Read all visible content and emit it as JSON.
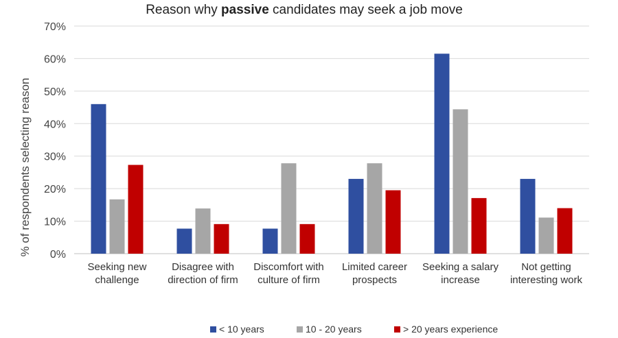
{
  "chart_data": {
    "type": "bar",
    "title": {
      "prefix": "Reason why ",
      "emphasis": "passive",
      "suffix": " candidates may seek a job move"
    },
    "ylabel": "% of respondents selecting reason",
    "xlabel": "",
    "ylim": [
      0,
      70
    ],
    "y_ticks": [
      "0%",
      "10%",
      "20%",
      "30%",
      "40%",
      "50%",
      "60%",
      "70%"
    ],
    "grid": true,
    "legend_position": "bottom",
    "categories": [
      [
        "Seeking new",
        "challenge"
      ],
      [
        "Disagree with",
        "direction of firm"
      ],
      [
        "Discomfort with",
        "culture of firm"
      ],
      [
        "Limited career",
        "prospects"
      ],
      [
        "Seeking a salary",
        "increase"
      ],
      [
        "Not getting",
        "interesting work"
      ]
    ],
    "series": [
      {
        "name": "< 10 years",
        "color": "#2f4fa0",
        "values": [
          46,
          7.7,
          7.7,
          23,
          61.5,
          23
        ]
      },
      {
        "name": "10 - 20 years",
        "color": "#a6a6a6",
        "values": [
          16.7,
          13.9,
          27.8,
          27.8,
          44.4,
          11.1
        ]
      },
      {
        "name": "> 20 years experience",
        "color": "#c00000",
        "values": [
          27.3,
          9.1,
          9.1,
          19.5,
          17.1,
          14
        ]
      }
    ]
  }
}
